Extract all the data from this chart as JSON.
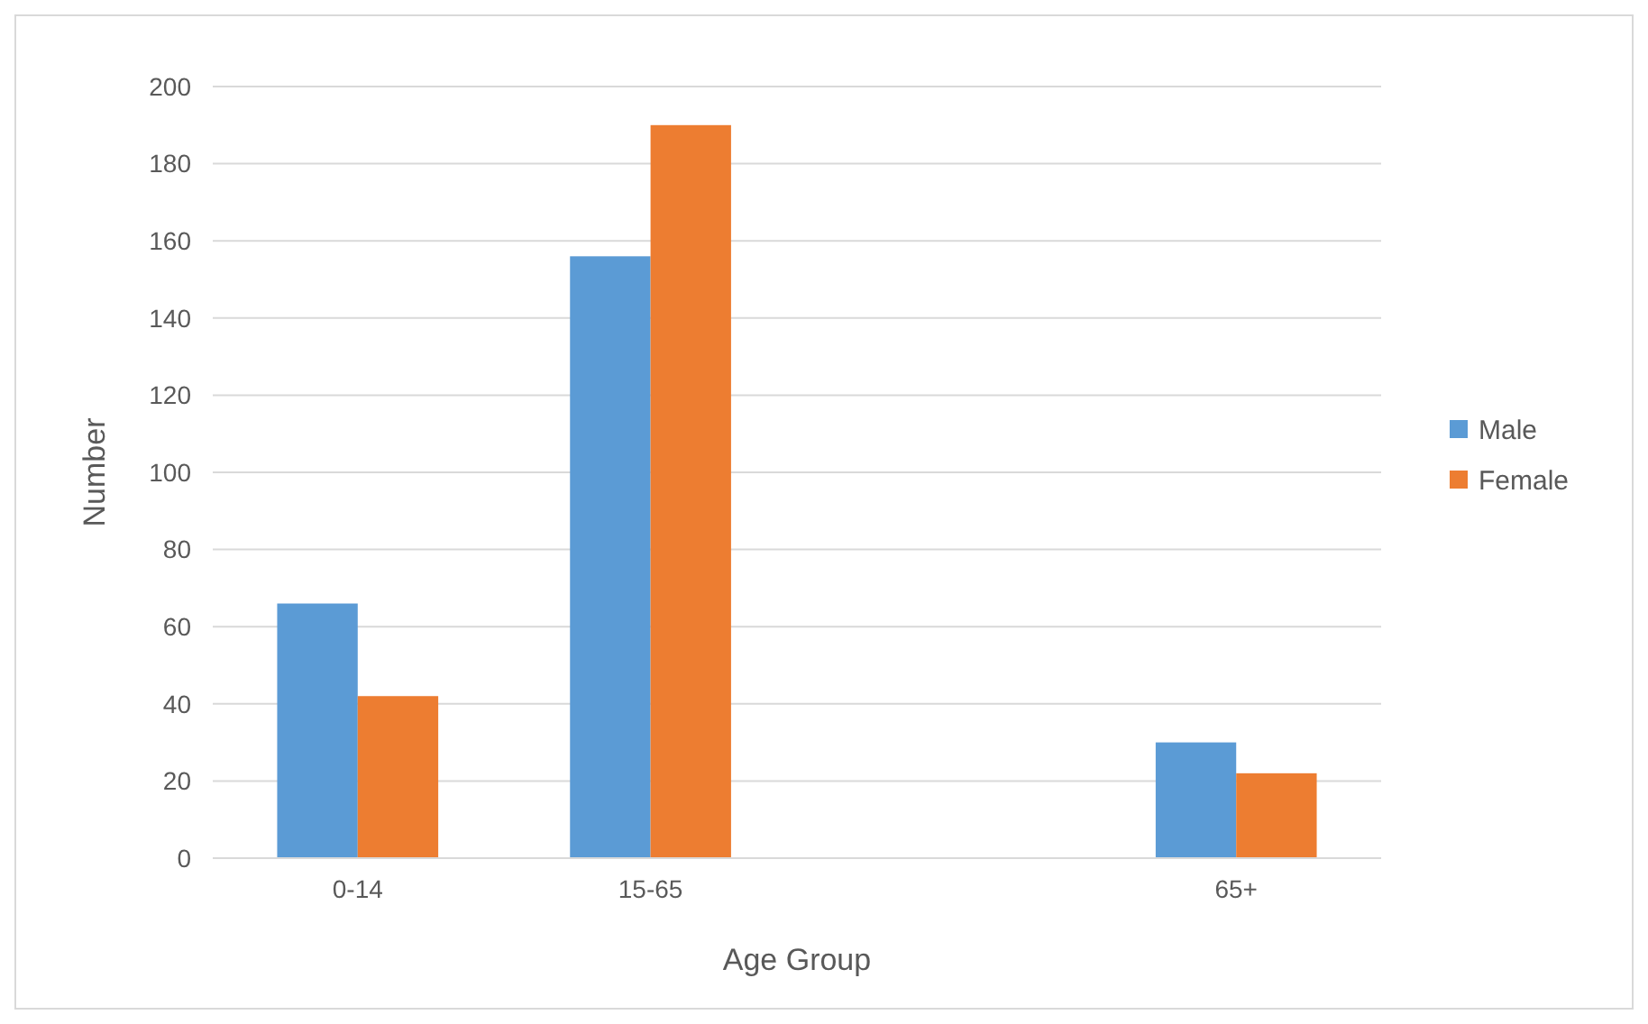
{
  "chart_data": {
    "type": "bar",
    "xlabel": "Age Group",
    "ylabel": "Number",
    "categories": [
      "0-14",
      "15-65",
      null,
      "65+"
    ],
    "series": [
      {
        "name": "Male",
        "color": "#5b9bd5",
        "values": [
          66,
          156,
          null,
          30
        ]
      },
      {
        "name": "Female",
        "color": "#ed7d31",
        "values": [
          42,
          190,
          null,
          22
        ]
      }
    ],
    "ylim": [
      0,
      200
    ],
    "yticks": [
      0,
      20,
      40,
      60,
      80,
      100,
      120,
      140,
      160,
      180,
      200
    ],
    "grid": "y",
    "legend": "right"
  }
}
